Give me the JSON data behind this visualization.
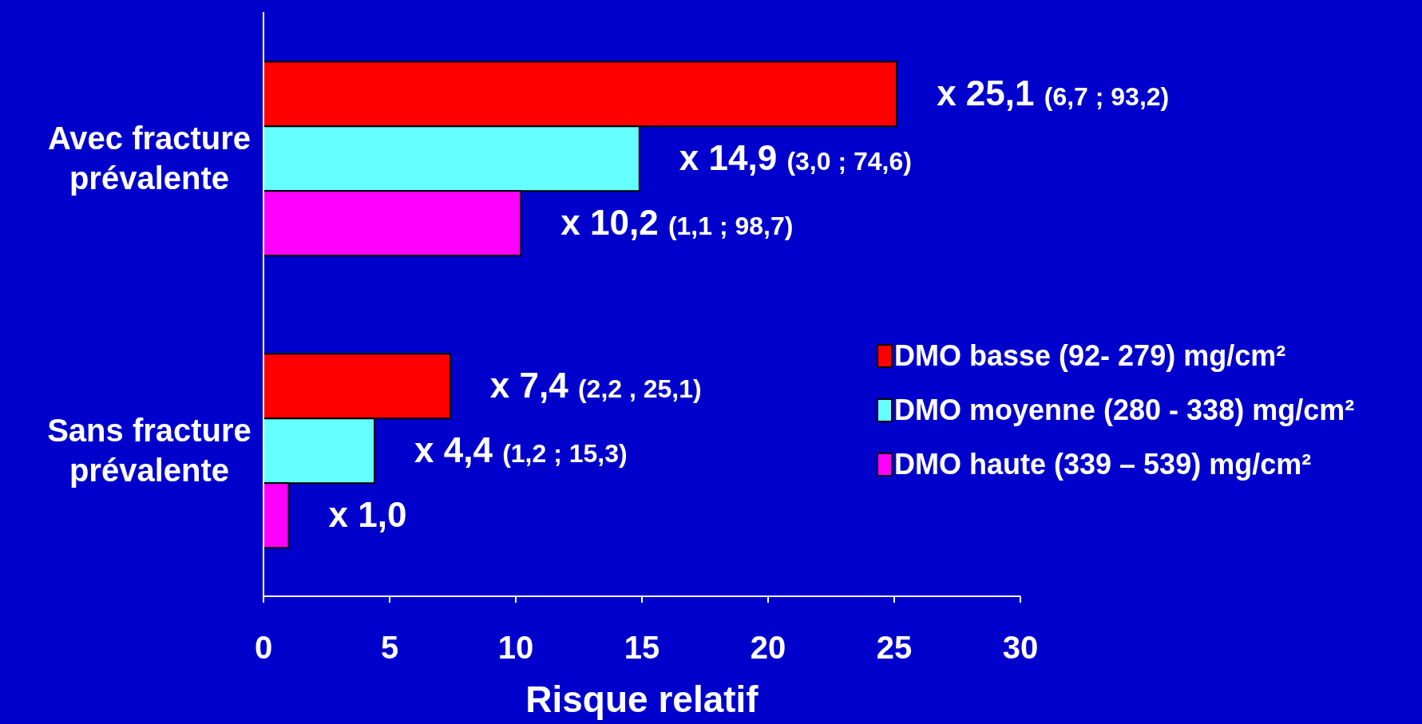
{
  "chart_data": {
    "type": "bar",
    "orientation": "horizontal",
    "categories": [
      "Avec fracture prévalente",
      "Sans fracture prévalente"
    ],
    "xlabel": "Risque relatif",
    "xlim": [
      0,
      30
    ],
    "xticks": [
      0,
      5,
      10,
      15,
      20,
      25,
      30
    ],
    "legend": "right",
    "series": [
      {
        "name": "DMO basse (92- 279) mg/cm²",
        "color": "#ff0000",
        "values": [
          25.1,
          7.4
        ],
        "value_labels": [
          "x 25,1 (6,7 ; 93,2)",
          "x 7,4 (2,2 , 25,1)"
        ]
      },
      {
        "name": "DMO moyenne (280 - 338) mg/cm²",
        "color": "#66ffff",
        "values": [
          14.9,
          4.4
        ],
        "value_labels": [
          "x 14,9 (3,0 ; 74,6)",
          "x 4,4 (1,2 ; 15,3)"
        ]
      },
      {
        "name": "DMO haute (339 – 539) mg/cm²",
        "color": "#ff00ff",
        "values": [
          10.2,
          1.0
        ],
        "value_labels": [
          "x 10,2 (1,1 ; 98,7)",
          "x 1,0"
        ]
      }
    ]
  }
}
